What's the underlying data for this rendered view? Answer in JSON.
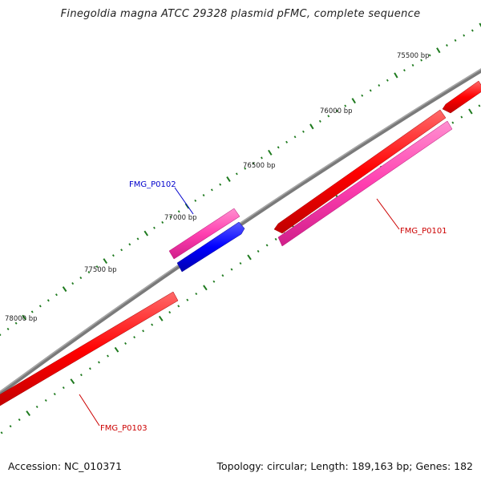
{
  "title": "Finegoldia magna ATCC 29328 plasmid pFMC, complete sequence",
  "footer": {
    "accession": "Accession: NC_010371",
    "topology": "Topology: circular; Length: 189,163 bp; Genes: 182"
  },
  "ticks": {
    "color": "#1e7a1e",
    "labels": [
      "75500 bp",
      "76000 bp",
      "76500 bp",
      "77000 bp",
      "77500 bp",
      "78000 bp"
    ]
  },
  "backbone": {
    "color": "#808080"
  },
  "genes": [
    {
      "name": "FMG_P0101",
      "label_color": "#cc0000",
      "fill": "#ff0000",
      "strand": "reverse-outer"
    },
    {
      "name": "FMG_P0101",
      "label_color": "#cc0000",
      "fill": "#ff3fb0",
      "strand": "cds"
    },
    {
      "name": "FMG_P0102",
      "label_color": "#0000cc",
      "fill": "#ff3fb0",
      "strand": "cds"
    },
    {
      "name": "FMG_P0102",
      "label_color": "#0000cc",
      "fill": "#0000ff",
      "strand": "forward"
    },
    {
      "name": "FMG_P0103",
      "label_color": "#cc0000",
      "fill": "#ff0000",
      "strand": "reverse"
    }
  ],
  "gene_labels": [
    "FMG_P0101",
    "FMG_P0102",
    "FMG_P0103"
  ],
  "gene_label_colors": {
    "FMG_P0101": "#cc0000",
    "FMG_P0102": "#0000cc",
    "FMG_P0103": "#cc0000"
  }
}
